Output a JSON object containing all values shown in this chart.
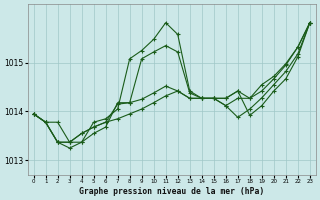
{
  "title": "Graphe pression niveau de la mer (hPa)",
  "bg_color": "#cce8e8",
  "line_color": "#1a5c1a",
  "xlim": [
    -0.5,
    23.5
  ],
  "ylim": [
    1012.7,
    1016.2
  ],
  "yticks": [
    1013,
    1014,
    1015
  ],
  "xticks": [
    0,
    1,
    2,
    3,
    4,
    5,
    6,
    7,
    8,
    9,
    10,
    11,
    12,
    13,
    14,
    15,
    16,
    17,
    18,
    19,
    20,
    21,
    22,
    23
  ],
  "series": [
    [
      1013.95,
      1013.78,
      1013.78,
      1013.37,
      1013.37,
      1013.78,
      1013.85,
      1014.05,
      1015.08,
      1015.25,
      1015.48,
      1015.82,
      1015.58,
      1014.42,
      1014.27,
      1014.27,
      1014.27,
      1014.42,
      1013.92,
      1014.12,
      1014.42,
      1014.67,
      1015.12,
      1015.82
    ],
    [
      1013.95,
      1013.78,
      1013.37,
      1013.37,
      1013.55,
      1013.68,
      1013.78,
      1013.85,
      1013.95,
      1014.05,
      1014.18,
      1014.32,
      1014.42,
      1014.27,
      1014.27,
      1014.27,
      1014.27,
      1014.42,
      1014.27,
      1014.42,
      1014.67,
      1014.95,
      1015.32,
      1015.82
    ],
    [
      1013.95,
      1013.78,
      1013.37,
      1013.37,
      1013.55,
      1013.68,
      1013.78,
      1014.15,
      1014.18,
      1014.25,
      1014.38,
      1014.52,
      1014.42,
      1014.27,
      1014.27,
      1014.27,
      1014.12,
      1013.88,
      1014.05,
      1014.28,
      1014.55,
      1014.82,
      1015.18,
      1015.82
    ],
    [
      1013.95,
      1013.78,
      1013.37,
      1013.25,
      1013.37,
      1013.55,
      1013.68,
      1014.18,
      1014.18,
      1015.08,
      1015.22,
      1015.35,
      1015.22,
      1014.38,
      1014.27,
      1014.27,
      1014.12,
      1014.27,
      1014.27,
      1014.55,
      1014.72,
      1014.98,
      1015.32,
      1015.82
    ]
  ]
}
